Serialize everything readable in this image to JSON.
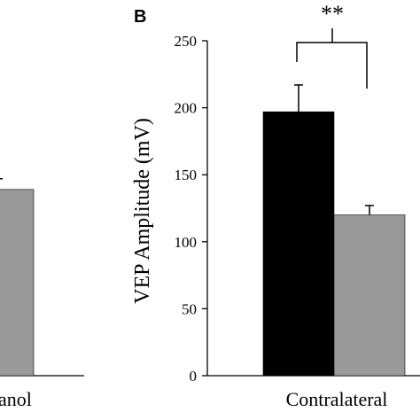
{
  "chart_data": [
    {
      "panel": "",
      "type": "bar",
      "categories": [
        "nol"
      ],
      "category_label": "anol",
      "series": [
        {
          "values": [
            139
          ],
          "errors": [
            8
          ],
          "color": "#999999"
        }
      ],
      "ylim": [
        0,
        250
      ]
    },
    {
      "panel": "B",
      "type": "bar",
      "categories": [
        "Contralateral"
      ],
      "series": [
        {
          "values": [
            197
          ],
          "errors": [
            20
          ],
          "color": "#000000"
        },
        {
          "values": [
            120
          ],
          "errors": [
            7
          ],
          "color": "#999999"
        }
      ],
      "ylabel": "VEP Amplitude (mV)",
      "ylim": [
        0,
        250
      ],
      "yticks": [
        0,
        50,
        100,
        150,
        200,
        250
      ],
      "significance": {
        "label": "**",
        "between_series": [
          0,
          1
        ]
      },
      "grid": false
    }
  ]
}
